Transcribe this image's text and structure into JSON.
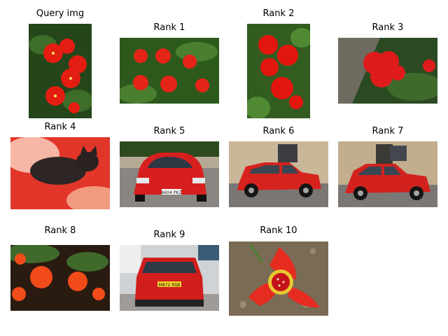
{
  "query": {
    "caption": "Query img",
    "subject": "red flowers"
  },
  "results": [
    {
      "caption": "Rank 1",
      "subject": "red flowers"
    },
    {
      "caption": "Rank 2",
      "subject": "red flowers"
    },
    {
      "caption": "Rank 3",
      "subject": "red geranium"
    },
    {
      "caption": "Rank 4",
      "subject": "cat on red blanket"
    },
    {
      "caption": "Rank 5",
      "subject": "red car front"
    },
    {
      "caption": "Rank 6",
      "subject": "red car side"
    },
    {
      "caption": "Rank 7",
      "subject": "red car side"
    },
    {
      "caption": "Rank 8",
      "subject": "orange flowers"
    },
    {
      "caption": "Rank 9",
      "subject": "red car rear"
    },
    {
      "caption": "Rank 10",
      "subject": "red flower close-up"
    }
  ],
  "plates": {
    "rank5": "A604 PKZ",
    "rank9": "M872 RSB"
  },
  "colors": {
    "accent": "#e8231c",
    "leaf": "#2f5d1e",
    "road": "#8c8c8c"
  }
}
